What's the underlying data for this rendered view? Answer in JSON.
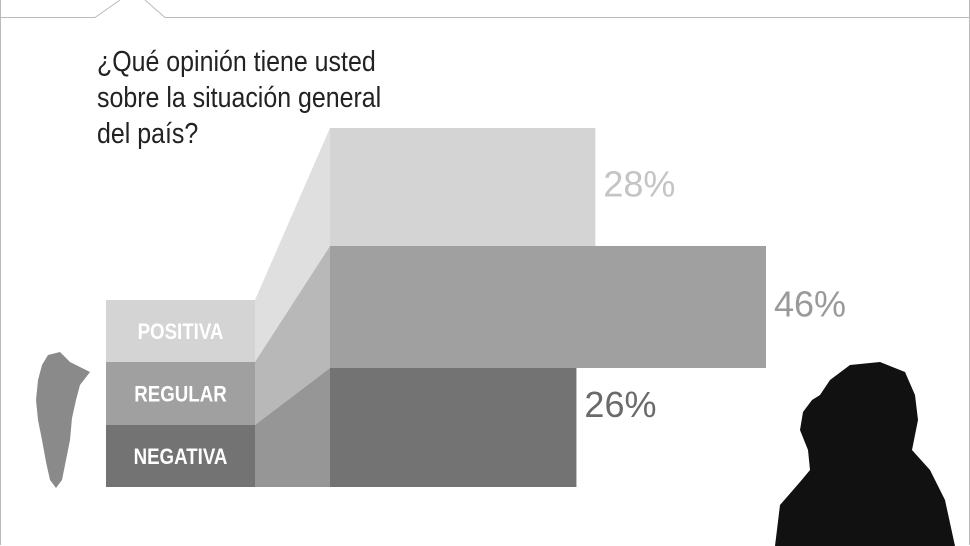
{
  "chart_data": {
    "type": "bar",
    "orientation": "horizontal",
    "title": "¿Qué opinión tiene usted sobre la situación general del país?",
    "categories": [
      "POSITIVA",
      "REGULAR",
      "NEGATIVA"
    ],
    "values": [
      28,
      46,
      26
    ],
    "value_labels": [
      "28%",
      "46%",
      "26%"
    ],
    "colors": [
      "#d4d4d4",
      "#a0a0a0",
      "#737373"
    ],
    "label_colors": [
      "#c4c4c4",
      "#9a9a9a",
      "#6a6a6a"
    ]
  }
}
